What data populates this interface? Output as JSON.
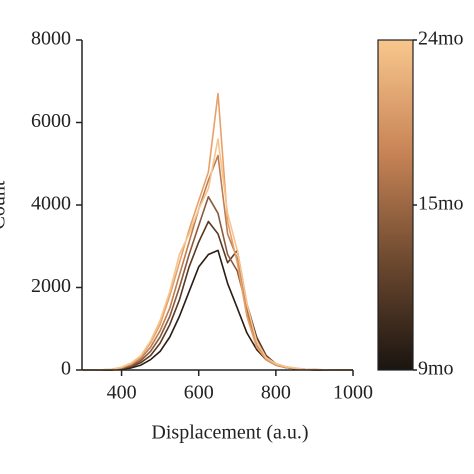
{
  "chart_data": {
    "type": "line",
    "xlabel": "Displacement (a.u.)",
    "ylabel": "Count",
    "x": [
      300,
      325,
      350,
      375,
      400,
      425,
      450,
      475,
      500,
      525,
      550,
      575,
      600,
      625,
      650,
      675,
      700,
      725,
      750,
      775,
      800,
      825,
      850,
      875,
      900,
      925,
      950,
      975,
      1000
    ],
    "series": [
      {
        "color": "#2b1d14",
        "values": [
          0,
          0,
          0,
          0,
          20,
          50,
          120,
          250,
          450,
          800,
          1300,
          1900,
          2500,
          2800,
          2900,
          2100,
          1500,
          900,
          500,
          250,
          120,
          60,
          30,
          10,
          0,
          0,
          0,
          0,
          0
        ]
      },
      {
        "color": "#5a3a24",
        "values": [
          0,
          0,
          0,
          0,
          30,
          80,
          180,
          350,
          650,
          1100,
          1700,
          2500,
          3100,
          3600,
          3300,
          2600,
          2900,
          1600,
          800,
          350,
          150,
          70,
          30,
          10,
          5,
          0,
          0,
          0,
          0
        ]
      },
      {
        "color": "#8a5a3a",
        "values": [
          0,
          0,
          0,
          10,
          40,
          100,
          230,
          450,
          800,
          1300,
          2000,
          2800,
          3500,
          4200,
          3800,
          2800,
          2400,
          1500,
          700,
          300,
          150,
          80,
          40,
          20,
          10,
          0,
          0,
          0,
          0
        ]
      },
      {
        "color": "#c07d50",
        "values": [
          0,
          0,
          0,
          10,
          50,
          130,
          280,
          550,
          950,
          1500,
          2300,
          3100,
          3900,
          4600,
          5200,
          3300,
          2700,
          1400,
          600,
          250,
          120,
          60,
          40,
          20,
          10,
          0,
          0,
          0,
          0
        ]
      },
      {
        "color": "#e8a06a",
        "values": [
          0,
          0,
          5,
          20,
          60,
          150,
          320,
          650,
          1100,
          1800,
          2600,
          3400,
          4100,
          4800,
          6700,
          3600,
          2600,
          1300,
          550,
          260,
          130,
          70,
          40,
          20,
          10,
          5,
          0,
          0,
          0
        ]
      },
      {
        "color": "#f7c48c",
        "values": [
          0,
          0,
          5,
          20,
          70,
          170,
          350,
          700,
          1200,
          1900,
          2800,
          3300,
          3900,
          4400,
          5600,
          3800,
          2900,
          1600,
          700,
          300,
          150,
          80,
          50,
          20,
          10,
          5,
          0,
          0,
          0
        ]
      }
    ],
    "xlim": [
      300,
      1000
    ],
    "xticks": [
      400,
      600,
      800,
      1000
    ],
    "ylim": [
      0,
      8000
    ],
    "yticks": [
      0,
      2000,
      4000,
      6000,
      8000
    ],
    "colorbar": {
      "colors": [
        "#1a1410",
        "#6e4a30",
        "#c98557",
        "#f8c78e"
      ],
      "labels": [
        "24mo",
        "15mo",
        "9mo"
      ]
    }
  }
}
